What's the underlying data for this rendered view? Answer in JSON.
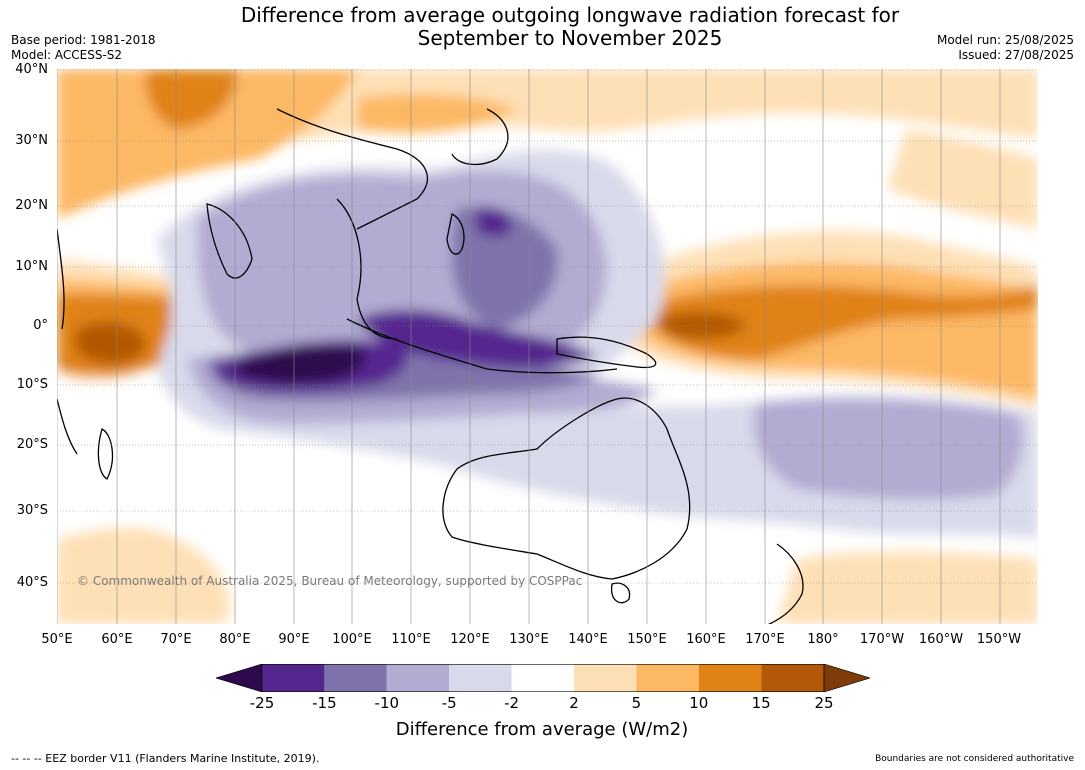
{
  "title": {
    "line1": "Difference from average outgoing longwave radiation forecast for",
    "line2": "September to November 2025"
  },
  "meta_left": {
    "base_period": "Base period: 1981-2018",
    "model": "Model: ACCESS-S2"
  },
  "meta_right": {
    "model_run": "Model run: 25/08/2025",
    "issued": "Issued: 27/08/2025"
  },
  "lat_labels": [
    "40°N",
    "30°N",
    "20°N",
    "10°N",
    "0°",
    "10°S",
    "20°S",
    "30°S",
    "40°S"
  ],
  "lon_labels": [
    "50°E",
    "60°E",
    "70°E",
    "80°E",
    "90°E",
    "100°E",
    "110°E",
    "120°E",
    "130°E",
    "140°E",
    "150°E",
    "160°E",
    "170°E",
    "180°",
    "170°W",
    "160°W",
    "150°W"
  ],
  "copyright": "© Commonwealth of Australia 2025, Bureau of Meteorology, supported by COSPPac",
  "colorbar": {
    "ticks": [
      "-25",
      "-15",
      "-10",
      "-5",
      "-2",
      "2",
      "5",
      "10",
      "15",
      "25"
    ],
    "colors": [
      "#2d0a4e",
      "#54278f",
      "#8073ac",
      "#b2abd2",
      "#d8daeb",
      "#ffffff",
      "#fee0b6",
      "#fdb863",
      "#e08214",
      "#b35806",
      "#7f3b08"
    ],
    "title": "Difference from average (W/m2)"
  },
  "footer": {
    "eez": "--  --  -- EEZ border V11 (Flanders Marine Institute, 2019).",
    "disclaimer": "Boundaries are not considered authoritative"
  }
}
